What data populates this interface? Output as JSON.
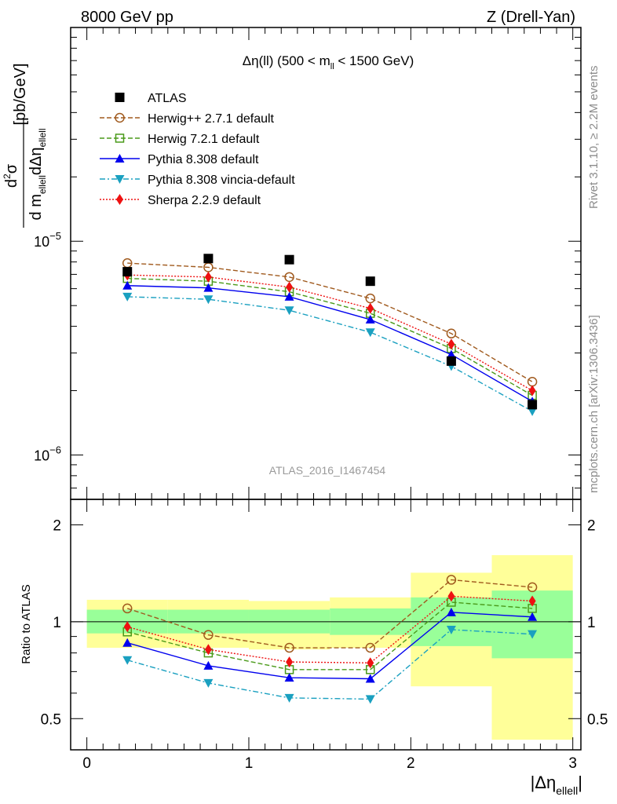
{
  "header": {
    "left": "8000 GeV pp",
    "right": "Z (Drell-Yan)"
  },
  "side_labels": {
    "top": "Rivet 3.1.10, ≥ 2.2M events",
    "bottom": "mcplots.cern.ch [arXiv:1306.3436]"
  },
  "chart_data": [
    {
      "type": "line",
      "title": "Δη(ll) (500 < m_ll < 1500 GeV)",
      "title_parts": {
        "a": "Δη(ll) (500 < m",
        "sub": "ll",
        "b": " < 1500 GeV)"
      },
      "ylabel": "d²σ / d m_ellell dΔη_ellell [pb/GeV]",
      "ylabel_parts": {
        "d2": "d",
        "sup2": "2",
        "sigma": "σ",
        "den_a": "d m",
        "den_sub1": "ellell",
        "den_b": "dΔη",
        "den_sub2": "ellell",
        "unit": "[pb/GeV]"
      },
      "yscale": "log",
      "ylim": [
        6.2e-07,
        0.0001
      ],
      "yticks": [
        {
          "value": 1e-06,
          "base": "10",
          "exp": "−6"
        },
        {
          "value": 1e-05,
          "base": "10",
          "exp": "−5"
        }
      ],
      "xlim": [
        -0.1,
        3.05
      ],
      "x": [
        0.25,
        0.75,
        1.25,
        1.75,
        2.25,
        2.75
      ],
      "watermark": "ATLAS_2016_I1467454",
      "legend_position": "top-left",
      "series": [
        {
          "name": "ATLAS",
          "color": "#000000",
          "marker": "square",
          "line": "none",
          "values": [
            7.2e-06,
            8.3e-06,
            8.2e-06,
            6.5e-06,
            2.75e-06,
            1.72e-06
          ]
        },
        {
          "name": "Herwig++ 2.7.1 default",
          "color": "#a05a1e",
          "marker": "circle-open",
          "line": "dashed",
          "values": [
            7.9e-06,
            7.55e-06,
            6.8e-06,
            5.4e-06,
            3.7e-06,
            2.2e-06
          ]
        },
        {
          "name": "Herwig 7.2.1 default",
          "color": "#4a9a1a",
          "marker": "square-open",
          "line": "dashed",
          "values": [
            6.7e-06,
            6.5e-06,
            5.8e-06,
            4.6e-06,
            3.15e-06,
            1.9e-06
          ]
        },
        {
          "name": "Pythia 8.308 default",
          "color": "#0000ee",
          "marker": "triangle-up",
          "line": "solid",
          "values": [
            6.2e-06,
            6.05e-06,
            5.5e-06,
            4.3e-06,
            2.95e-06,
            1.78e-06
          ]
        },
        {
          "name": "Pythia 8.308 vincia-default",
          "color": "#1aa0c0",
          "marker": "triangle-down",
          "line": "dashdot",
          "values": [
            5.5e-06,
            5.35e-06,
            4.75e-06,
            3.75e-06,
            2.6e-06,
            1.6e-06
          ]
        },
        {
          "name": "Sherpa 2.2.9 default",
          "color": "#ee1111",
          "marker": "diamond",
          "line": "dotted",
          "values": [
            6.95e-06,
            6.8e-06,
            6.1e-06,
            4.85e-06,
            3.3e-06,
            2e-06
          ]
        }
      ]
    },
    {
      "type": "line",
      "ylabel": "Ratio to ATLAS",
      "xlabel": "|Δη_ellell|",
      "xlabel_parts": {
        "a": "|Δη",
        "sub": "ellell",
        "b": "|"
      },
      "yscale": "log",
      "ylim": [
        0.4,
        2.4
      ],
      "yticks": [
        0.5,
        1,
        2
      ],
      "xlim": [
        -0.1,
        3.05
      ],
      "xticks": [
        0,
        1,
        2,
        3
      ],
      "reference": 1,
      "bands": [
        {
          "x0": 0.0,
          "x1": 0.5,
          "inner": [
            0.92,
            1.09
          ],
          "outer": [
            0.83,
            1.17
          ]
        },
        {
          "x0": 0.5,
          "x1": 1.0,
          "inner": [
            0.92,
            1.09
          ],
          "outer": [
            0.83,
            1.17
          ]
        },
        {
          "x0": 1.0,
          "x1": 1.5,
          "inner": [
            0.92,
            1.09
          ],
          "outer": [
            0.82,
            1.16
          ]
        },
        {
          "x0": 1.5,
          "x1": 2.0,
          "inner": [
            0.91,
            1.1
          ],
          "outer": [
            0.83,
            1.19
          ]
        },
        {
          "x0": 2.0,
          "x1": 2.5,
          "inner": [
            0.84,
            1.19
          ],
          "outer": [
            0.63,
            1.42
          ]
        },
        {
          "x0": 2.5,
          "x1": 3.0,
          "inner": [
            0.77,
            1.25
          ],
          "outer": [
            0.43,
            1.61
          ]
        }
      ],
      "band_colors": {
        "inner": "#99ff99",
        "outer": "#ffff99"
      },
      "x": [
        0.25,
        0.75,
        1.25,
        1.75,
        2.25,
        2.75
      ],
      "series": [
        {
          "name": "Herwig++ 2.7.1 default",
          "values": [
            1.1,
            0.91,
            0.83,
            0.83,
            1.35,
            1.28
          ]
        },
        {
          "name": "Herwig 7.2.1 default",
          "values": [
            0.93,
            0.8,
            0.71,
            0.71,
            1.15,
            1.1
          ]
        },
        {
          "name": "Pythia 8.308 default",
          "values": [
            0.86,
            0.73,
            0.67,
            0.665,
            1.07,
            1.035
          ]
        },
        {
          "name": "Pythia 8.308 vincia-default",
          "values": [
            0.76,
            0.645,
            0.58,
            0.575,
            0.945,
            0.915
          ]
        },
        {
          "name": "Sherpa 2.2.9 default",
          "values": [
            0.965,
            0.82,
            0.75,
            0.745,
            1.2,
            1.16
          ]
        }
      ]
    }
  ]
}
